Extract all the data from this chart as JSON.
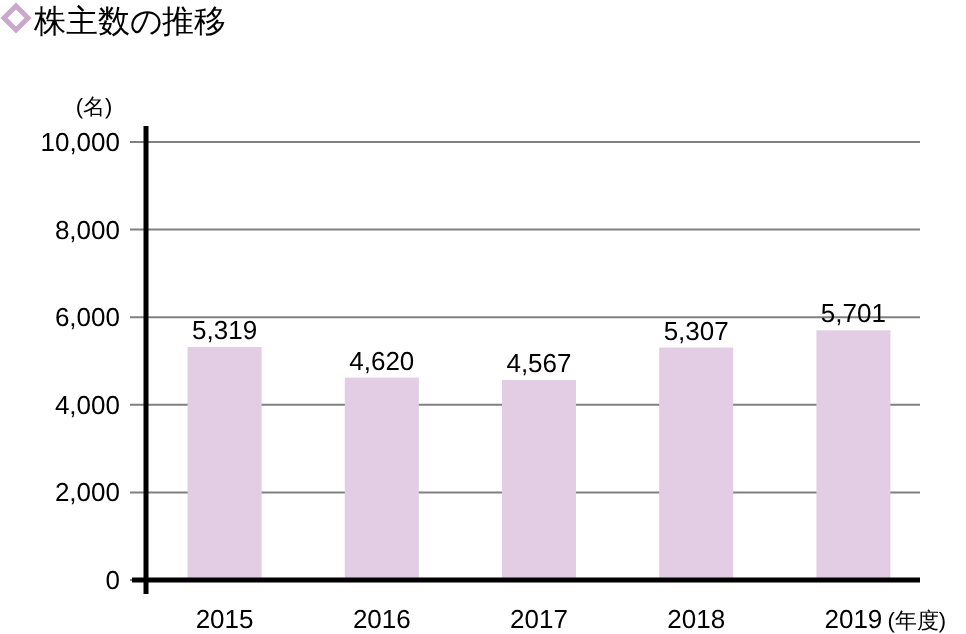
{
  "chart_data": {
    "type": "bar",
    "title": "株主数の推移",
    "ylabel": "(名)",
    "xlabel": "(年度)",
    "categories": [
      "2015",
      "2016",
      "2017",
      "2018",
      "2019"
    ],
    "values": [
      5319,
      4620,
      4567,
      5307,
      5701
    ],
    "color": "#e2cde4",
    "ylim": [
      0,
      10000
    ],
    "yticks": [
      {
        "value": 0,
        "label": "0"
      },
      {
        "value": 2000,
        "label": "2,000"
      },
      {
        "value": 4000,
        "label": "4,000"
      },
      {
        "value": 6000,
        "label": "6,000"
      },
      {
        "value": 8000,
        "label": "8,000"
      },
      {
        "value": 10000,
        "label": "10,000"
      }
    ],
    "grid": "y",
    "value_labels": [
      "5,319",
      "4,620",
      "4,567",
      "5,307",
      "5,701"
    ]
  }
}
